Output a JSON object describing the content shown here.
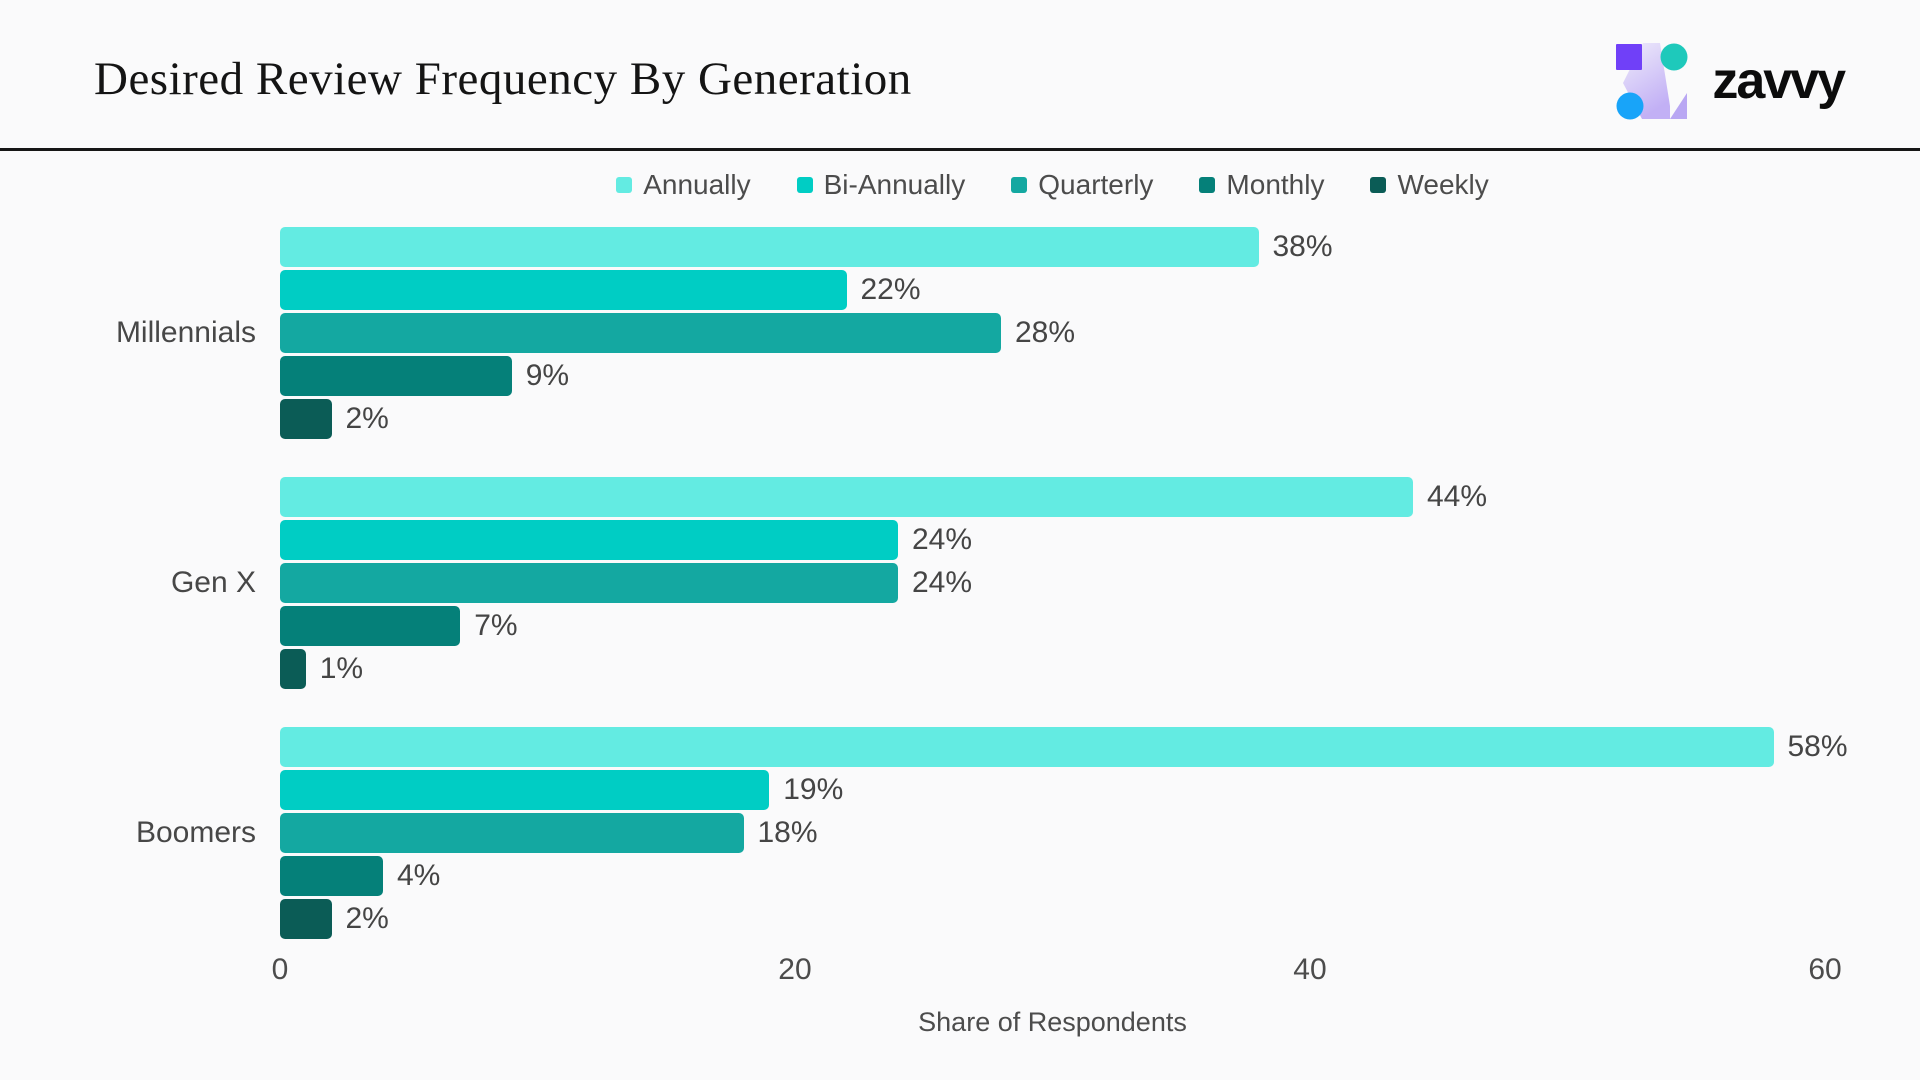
{
  "page": {
    "background": "#FAFAFB"
  },
  "header": {
    "title": "Desired Review Frequency By Generation",
    "brand": {
      "wordmark": "zavvy"
    }
  },
  "logo": {
    "square": "#7040F8",
    "circle_top": "#1EC9BB",
    "circle_bottom": "#18A4F9",
    "z_light": "#EFECFB",
    "z_dark": "#C2B0F5",
    "triangle": "#B9A7F3"
  },
  "chart_data": {
    "type": "bar",
    "orientation": "horizontal",
    "title": "Desired Review Frequency By Generation",
    "xlabel": "Share of Respondents",
    "xlim": [
      0,
      60
    ],
    "xticks": [
      0,
      20,
      40,
      60
    ],
    "value_suffix": "%",
    "grid": false,
    "legend_position": "top",
    "categories": [
      "Millennials",
      "Gen X",
      "Boomers"
    ],
    "series": [
      {
        "name": "Annually",
        "color": "#63EBE2",
        "values": [
          38,
          44,
          58
        ]
      },
      {
        "name": "Bi-Annually",
        "color": "#00CDC4",
        "values": [
          22,
          24,
          19
        ]
      },
      {
        "name": "Quarterly",
        "color": "#14A8A1",
        "values": [
          28,
          24,
          18
        ]
      },
      {
        "name": "Monthly",
        "color": "#058079",
        "values": [
          9,
          7,
          4
        ]
      },
      {
        "name": "Weekly",
        "color": "#0B5C56",
        "values": [
          2,
          1,
          2
        ]
      }
    ]
  }
}
